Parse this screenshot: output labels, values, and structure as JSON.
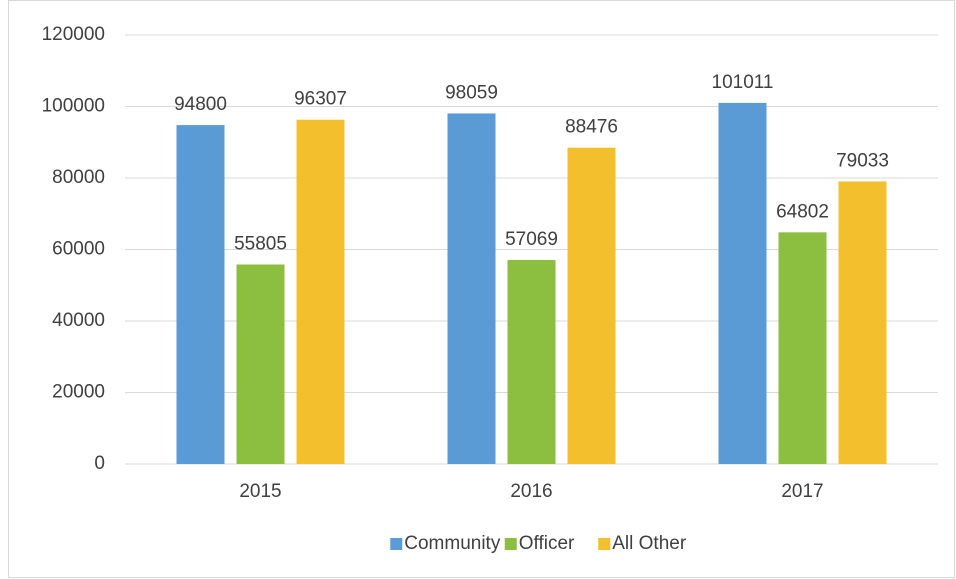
{
  "chart_data": {
    "type": "bar",
    "categories": [
      "2015",
      "2016",
      "2017"
    ],
    "series": [
      {
        "name": "Community",
        "color": "#5b9bd5",
        "values": [
          94800,
          98059,
          101011
        ]
      },
      {
        "name": "Officer",
        "color": "#8cbe3f",
        "values": [
          55805,
          57069,
          64802
        ]
      },
      {
        "name": "All Other",
        "color": "#f4bf2c",
        "values": [
          96307,
          88476,
          79033
        ]
      }
    ],
    "ylim": [
      0,
      120000
    ],
    "yticks": [
      0,
      20000,
      40000,
      60000,
      80000,
      100000,
      120000
    ],
    "grid": true,
    "legend": "bottom"
  }
}
